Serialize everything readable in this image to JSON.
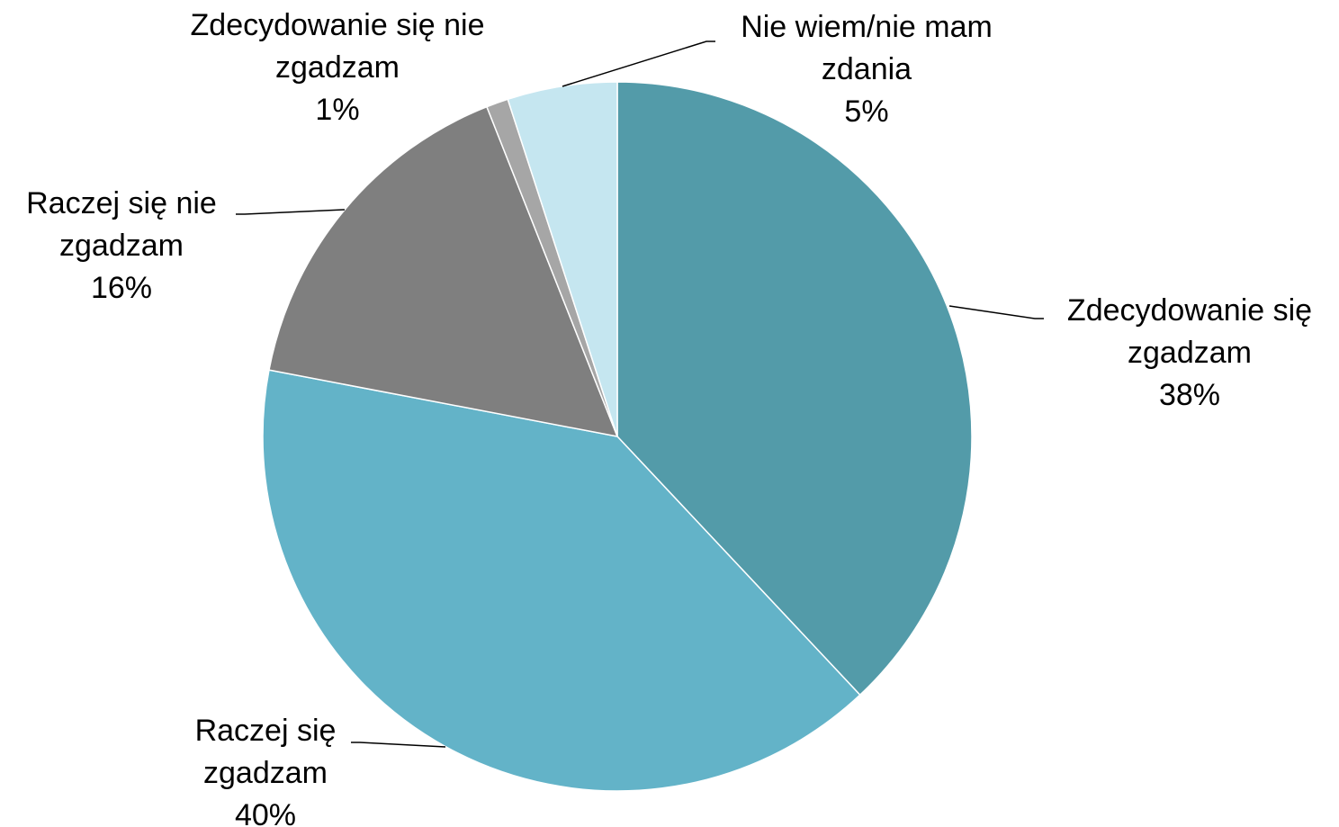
{
  "chart_data": {
    "type": "pie",
    "categories": [
      "Zdecydowanie się zgadzam",
      "Raczej się zgadzam",
      "Raczej się nie zgadzam",
      "Zdecydowanie się nie zgadzam",
      "Nie wiem/nie mam zdania"
    ],
    "values": [
      38,
      40,
      16,
      1,
      5
    ],
    "value_labels": [
      "38%",
      "40%",
      "16%",
      "1%",
      "5%"
    ],
    "colors": [
      "#539ba9",
      "#63b3c8",
      "#7f7f7f",
      "#a6a6a6",
      "#c5e6f0"
    ]
  }
}
